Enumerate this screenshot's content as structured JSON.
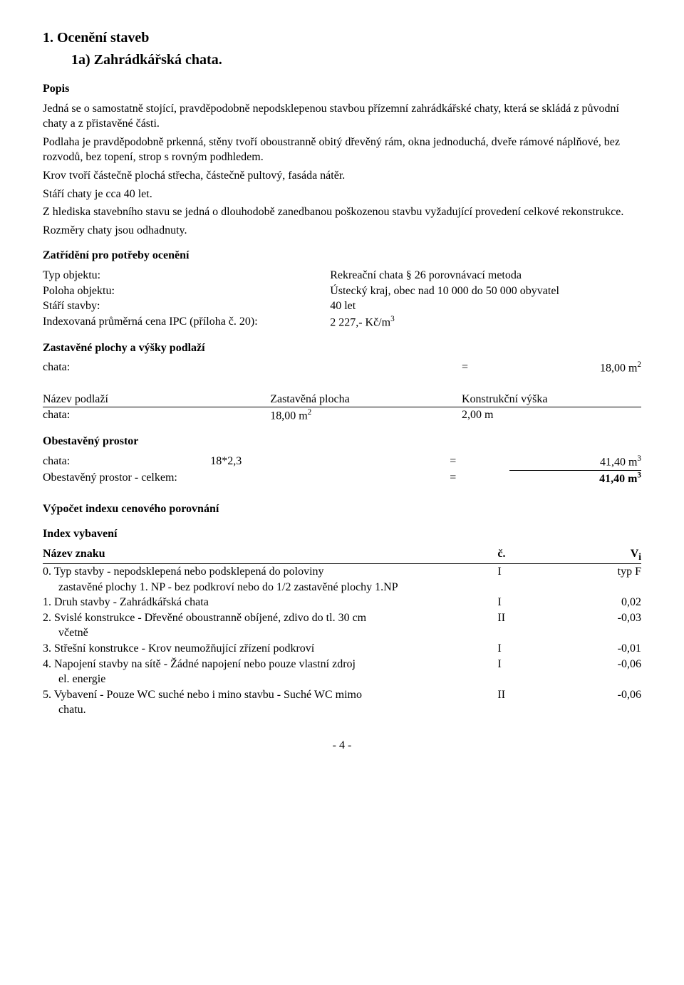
{
  "title": "1. Ocenění staveb",
  "subtitle": "1a) Zahrádkářská chata.",
  "popis_heading": "Popis",
  "popis_body": [
    "Jedná se o samostatně stojící, pravděpodobně nepodsklepenou stavbou přízemní zahrádkářské chaty, která se skládá z původní chaty a z přistavěné části.",
    "Podlaha je pravděpodobně prkenná, stěny tvoří oboustranně obitý dřevěný rám, okna jednoduchá, dveře rámové náplňové, bez rozvodů, bez topení, strop s rovným podhledem.",
    "Krov tvoří částečně plochá střecha, částečně pultový, fasáda nátěr.",
    "Stáří chaty je cca 40 let.",
    "Z hlediska stavebního stavu se jedná o dlouhodobě zanedbanou poškozenou stavbu vyžadující provedení celkové rekonstrukce.",
    "Rozměry chaty jsou odhadnuty."
  ],
  "zatrideni": {
    "heading": "Zatřídění pro potřeby ocenění",
    "rows": [
      {
        "label": "Typ objektu:",
        "value": "Rekreační chata § 26 porovnávací metoda"
      },
      {
        "label": "Poloha objektu:",
        "value": "Ústecký kraj, obec nad 10 000 do 50 000 obyvatel"
      },
      {
        "label": "Stáří stavby:",
        "value": "40 let"
      },
      {
        "label": "Indexovaná průměrná cena IPC (příloha č. 20):",
        "value_html": "2 227,- Kč/m<span class='sup'>3</span>"
      }
    ]
  },
  "zastavene": {
    "heading": "Zastavěné plochy a výšky podlaží",
    "row": {
      "label": "chata:",
      "eq": "=",
      "value_html": "18,00 m<span class='sup'>2</span>"
    }
  },
  "podlazi_table": {
    "headers": [
      "Název podlaží",
      "Zastavěná plocha",
      "Konstrukční výška"
    ],
    "row": {
      "c1": "chata:",
      "c2_html": "18,00 m<span class='sup'>2</span>",
      "c3": "2,00 m"
    }
  },
  "obestaveny": {
    "heading": "Obestavěný prostor",
    "r1": {
      "c1": "chata:",
      "c2": "18*2,3",
      "eq": "=",
      "val_html": "41,40 m<span class='sup'>3</span>"
    },
    "r2": {
      "c1": "Obestavěný prostor - celkem:",
      "eq": "=",
      "val_html": "<b>41,40 m<span class='sup'>3</span></b>"
    }
  },
  "vypocet_heading": "Výpočet indexu cenového porovnání",
  "index_vybaveni": {
    "heading": "Index vybavení",
    "header": {
      "c1": "Název znaku",
      "c2": "č.",
      "c3_html": "V<sub>i</sub>"
    },
    "rows": [
      {
        "num": "0.",
        "text": "Typ stavby - nepodsklepená nebo podsklepená do poloviny",
        "indent": "zastavěné plochy 1. NP - bez podkroví nebo do 1/2 zastavěné plochy 1.NP",
        "c2": "I",
        "c3": "typ F"
      },
      {
        "num": "1.",
        "text": "Druh stavby - Zahrádkářská chata",
        "c2": "I",
        "c3": "0,02"
      },
      {
        "num": "2.",
        "text": "Svislé konstrukce - Dřevěné oboustranně obíjené, zdivo do tl. 30 cm",
        "indent": "včetně",
        "c2": "II",
        "c3": "-0,03"
      },
      {
        "num": "3.",
        "text": "Střešní konstrukce - Krov neumožňující zřízení podkroví",
        "c2": "I",
        "c3": "-0,01"
      },
      {
        "num": "4.",
        "text": "Napojení stavby na sítě - Žádné napojení nebo pouze vlastní zdroj",
        "indent": "el. energie",
        "c2": "I",
        "c3": "-0,06"
      },
      {
        "num": "5.",
        "text": "Vybavení - Pouze WC suché nebo i mino stavbu - Suché WC mimo",
        "indent": "chatu.",
        "c2": "II",
        "c3": "-0,06"
      }
    ]
  },
  "page_number": "- 4 -"
}
